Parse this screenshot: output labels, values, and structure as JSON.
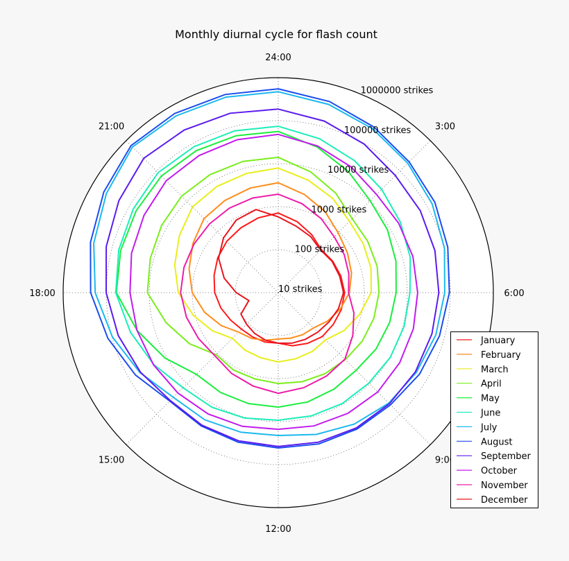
{
  "chart_data": {
    "type": "line",
    "projection": "polar",
    "title": "Monthly diurnal cycle for flash count",
    "theta_direction": "clockwise",
    "theta_zero": "top",
    "theta_tick_labels": [
      "24:00",
      "3:00",
      "6:00",
      "9:00",
      "12:00",
      "15:00",
      "18:00",
      "21:00"
    ],
    "radial_scale": "log",
    "rlim": [
      10,
      1000000
    ],
    "radial_tick_labels": [
      "10 strikes",
      "100 strikes",
      "1000 strikes",
      "10000 strikes",
      "100000 strikes",
      "1000000 strikes"
    ],
    "radial_tick_values": [
      10,
      100,
      1000,
      10000,
      100000,
      1000000
    ],
    "grid": true,
    "legend_position": "bottom-right",
    "x_hours": [
      0,
      1,
      2,
      3,
      4,
      5,
      6,
      7,
      8,
      9,
      10,
      11,
      12,
      13,
      14,
      15,
      16,
      17,
      18,
      19,
      20,
      21,
      22,
      23
    ],
    "series": [
      {
        "name": "January",
        "color": "#ff1a1a",
        "values": [
          710,
          510,
          360,
          260,
          290,
          320,
          350,
          330,
          300,
          280,
          230,
          190,
          150,
          155,
          155,
          160,
          190,
          240,
          300,
          350,
          420,
          490,
          550,
          630
        ]
      },
      {
        "name": "February",
        "color": "#ff8c1a",
        "values": [
          3600,
          2300,
          1500,
          930,
          720,
          580,
          450,
          310,
          210,
          145,
          135,
          125,
          120,
          140,
          170,
          200,
          340,
          590,
          1000,
          1400,
          1950,
          2750,
          3000,
          3300
        ]
      },
      {
        "name": "March",
        "color": "#e8ee1a",
        "values": [
          7900,
          5100,
          3400,
          2200,
          1900,
          1700,
          1450,
          910,
          580,
          360,
          380,
          390,
          410,
          370,
          350,
          320,
          590,
          1100,
          2100,
          3100,
          4500,
          6600,
          7100,
          7400
        ]
      },
      {
        "name": "April",
        "color": "#7aee1a",
        "values": [
          14000,
          8100,
          4700,
          2700,
          2500,
          2400,
          2200,
          2000,
          1800,
          1600,
          1500,
          1400,
          1300,
          1200,
          1200,
          1100,
          2400,
          5000,
          11000,
          12000,
          13500,
          15000,
          14800,
          14500
        ]
      },
      {
        "name": "May",
        "color": "#1aee3c",
        "values": [
          56000,
          32000,
          18000,
          10500,
          8500,
          6800,
          5500,
          4800,
          4200,
          3600,
          3900,
          4300,
          4600,
          4700,
          4800,
          4900,
          11000,
          25000,
          58000,
          62000,
          65000,
          69000,
          65000,
          60000
        ]
      },
      {
        "name": "June",
        "color": "#1aeeb8",
        "values": [
          74000,
          51000,
          35000,
          25000,
          19000,
          15000,
          11500,
          10700,
          10200,
          9500,
          9500,
          9300,
          9300,
          10500,
          12000,
          13500,
          22000,
          36000,
          60000,
          69000,
          78000,
          89000,
          83000,
          79000
        ]
      },
      {
        "name": "July",
        "color": "#1ab8ee",
        "values": [
          470000,
          340000,
          250000,
          180000,
          135000,
          100000,
          74000,
          62000,
          51000,
          43000,
          34000,
          26000,
          21000,
          23000,
          26000,
          28000,
          52000,
          98000,
          180000,
          275000,
          410000,
          620000,
          560000,
          510000
        ]
      },
      {
        "name": "August",
        "color": "#1a4cee",
        "values": [
          550000,
          400000,
          280000,
          200000,
          160000,
          120000,
          95000,
          76000,
          62000,
          49000,
          46000,
          44000,
          41000,
          40000,
          38000,
          37000,
          68000,
          126000,
          230000,
          330000,
          480000,
          690000,
          650000,
          590000
        ]
      },
      {
        "name": "September",
        "color": "#5a1aee",
        "values": [
          186000,
          135000,
          98000,
          71000,
          65000,
          59000,
          54000,
          50000,
          48000,
          45000,
          43000,
          40000,
          38000,
          37000,
          36000,
          35500,
          50000,
          71000,
          100000,
          138000,
          190000,
          263000,
          234000,
          209000
        ]
      },
      {
        "name": "October",
        "color": "#c21aee",
        "values": [
          48000,
          34000,
          24000,
          17000,
          17000,
          17400,
          17400,
          17800,
          18200,
          18600,
          17400,
          16200,
          15100,
          16600,
          18200,
          20000,
          22400,
          25000,
          28000,
          34000,
          40000,
          48000,
          48000,
          48000
        ]
      },
      {
        "name": "November",
        "color": "#ee1aa8",
        "values": [
          1950,
          1380,
          980,
          690,
          590,
          500,
          430,
          660,
          1000,
          1550,
          1740,
          1950,
          2200,
          1780,
          1480,
          1200,
          1380,
          1620,
          1860,
          1860,
          1820,
          1820,
          1860,
          1900
        ]
      },
      {
        "name": "December",
        "color": "#e8141e",
        "values": [
          580,
          400,
          320,
          250,
          280,
          300,
          330,
          280,
          230,
          200,
          180,
          165,
          150,
          140,
          125,
          110,
          100,
          51,
          95,
          200,
          400,
          630,
          890,
          1000
        ]
      }
    ]
  }
}
